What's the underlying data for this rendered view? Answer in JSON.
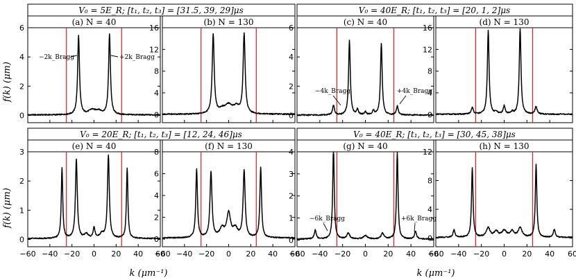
{
  "chart_data": {
    "type": "line",
    "x_axis": {
      "label": "k (μm⁻¹)",
      "range": [
        -60,
        60
      ],
      "ticks": [
        "−60",
        "−40",
        "−20",
        "0",
        "20",
        "40",
        "60"
      ]
    },
    "y_axis_label": "f(k) (μm)",
    "bragg_markers_x": [
      -25,
      25
    ],
    "colors": {
      "trace": "#000000",
      "marker": "#e41a1c",
      "frame": "#000000"
    },
    "groups": [
      {
        "title": "V₀ = 5E_R; [t₁, t₂, t₃] = [31.5, 39, 29]μs",
        "panels": [
          {
            "title": "(a) N = 40",
            "ylim": [
              -0.5,
              6
            ],
            "yticks": [
              "0",
              "2",
              "4",
              "6"
            ],
            "baseline": 0.03,
            "peaks": [
              {
                "x": -14,
                "height": 5.4,
                "width": 1.0
              },
              {
                "x": 14,
                "height": 5.5,
                "width": 1.0
              },
              {
                "x": -2,
                "height": 0.3,
                "width": 3.5
              },
              {
                "x": 4,
                "height": 0.25,
                "width": 3.5
              }
            ],
            "annotations": [
              "−2k_Bragg",
              "+2k_Bragg"
            ]
          },
          {
            "title": "(b) N = 130",
            "ylim": [
              -1.5,
              16
            ],
            "yticks": [
              "0",
              "4",
              "8",
              "12",
              "16"
            ],
            "baseline": 0.05,
            "peaks": [
              {
                "x": -14,
                "height": 14.5,
                "width": 1.1
              },
              {
                "x": 14,
                "height": 14.7,
                "width": 1.1
              },
              {
                "x": 0,
                "height": 1.6,
                "width": 4.0
              },
              {
                "x": 7,
                "height": 1.2,
                "width": 3.0
              },
              {
                "x": -6,
                "height": 0.7,
                "width": 3.0
              }
            ],
            "annotations": []
          }
        ]
      },
      {
        "title": "V₀ = 40E_R; [t₁, t₂, t₃] = [20, 1, 2]μs",
        "panels": [
          {
            "title": "(c) N = 40",
            "ylim": [
              -0.5,
              6
            ],
            "yticks": [
              "0",
              "2",
              "4",
              "6"
            ],
            "baseline": 0.02,
            "peaks": [
              {
                "x": -14,
                "height": 5.1,
                "width": 0.9
              },
              {
                "x": 14,
                "height": 4.9,
                "width": 0.9
              },
              {
                "x": -28,
                "height": 0.65,
                "width": 1.0
              },
              {
                "x": 28,
                "height": 0.6,
                "width": 1.0
              },
              {
                "x": -7,
                "height": 0.35,
                "width": 1.0
              },
              {
                "x": 7,
                "height": 0.3,
                "width": 1.0
              },
              {
                "x": 0,
                "height": 0.2,
                "width": 1.0
              }
            ],
            "annotations": [
              "−4k_Bragg",
              "+4k_Bragg"
            ]
          },
          {
            "title": "(d) N = 130",
            "ylim": [
              -1.5,
              16
            ],
            "yticks": [
              "0",
              "4",
              "8",
              "12",
              "16"
            ],
            "baseline": 0.05,
            "peaks": [
              {
                "x": -14,
                "height": 15.4,
                "width": 0.9
              },
              {
                "x": 14,
                "height": 15.8,
                "width": 0.9
              },
              {
                "x": -28,
                "height": 1.2,
                "width": 1.1
              },
              {
                "x": 28,
                "height": 1.4,
                "width": 1.1
              },
              {
                "x": 0,
                "height": 1.5,
                "width": 1.0
              },
              {
                "x": -7,
                "height": 0.4,
                "width": 1.2
              },
              {
                "x": 7,
                "height": 0.4,
                "width": 1.2
              }
            ],
            "annotations": []
          }
        ]
      },
      {
        "title": "V₀ = 20E_R; [t₁, t₂, t₃] = [12, 24, 46]μs",
        "panels": [
          {
            "title": "(e) N = 40",
            "ylim": [
              -0.25,
              3
            ],
            "yticks": [
              "0",
              "1",
              "2",
              "3"
            ],
            "baseline": 0.03,
            "peaks": [
              {
                "x": -29,
                "height": 2.4,
                "width": 0.8
              },
              {
                "x": -16,
                "height": 2.7,
                "width": 1.0
              },
              {
                "x": 13,
                "height": 2.85,
                "width": 1.0
              },
              {
                "x": 30,
                "height": 2.4,
                "width": 0.8
              },
              {
                "x": 0,
                "height": 0.35,
                "width": 1.0
              },
              {
                "x": -7,
                "height": 0.15,
                "width": 2.0
              },
              {
                "x": 7,
                "height": 0.15,
                "width": 2.0
              }
            ],
            "annotations": []
          },
          {
            "title": "(f) N = 130",
            "ylim": [
              -0.7,
              8
            ],
            "yticks": [
              "0",
              "2",
              "4",
              "6",
              "8"
            ],
            "baseline": 0.1,
            "peaks": [
              {
                "x": -29,
                "height": 6.3,
                "width": 0.9
              },
              {
                "x": -16,
                "height": 6.0,
                "width": 1.1
              },
              {
                "x": 14,
                "height": 6.1,
                "width": 1.1
              },
              {
                "x": 29,
                "height": 6.4,
                "width": 0.9
              },
              {
                "x": 0,
                "height": 2.2,
                "width": 2.0
              },
              {
                "x": -6,
                "height": 0.8,
                "width": 2.5
              },
              {
                "x": 6,
                "height": 0.8,
                "width": 2.5
              }
            ],
            "annotations": []
          }
        ]
      },
      {
        "title": "V₀ = 40E_R; [t₁, t₂, t₃] = [30, 45, 38]μs",
        "panels": [
          {
            "title": "(g) N = 40",
            "ylim": [
              -0.3,
              4
            ],
            "yticks": [
              "0",
              "1",
              "2",
              "3",
              "4"
            ],
            "baseline": 0.05,
            "peaks": [
              {
                "x": -28,
                "height": 4.2,
                "width": 0.8
              },
              {
                "x": 28,
                "height": 3.9,
                "width": 0.8
              },
              {
                "x": -44,
                "height": 0.4,
                "width": 1.0
              },
              {
                "x": 44,
                "height": 0.35,
                "width": 1.0
              },
              {
                "x": -15,
                "height": 0.25,
                "width": 1.5
              },
              {
                "x": 15,
                "height": 0.25,
                "width": 1.5
              },
              {
                "x": 0,
                "height": 0.15,
                "width": 2.0
              }
            ],
            "annotations": [
              "−6k_Bragg",
              "+6k_Bragg"
            ]
          },
          {
            "title": "(h) N = 130",
            "ylim": [
              -1.2,
              12
            ],
            "yticks": [
              "0",
              "4",
              "8",
              "12"
            ],
            "baseline": 0.1,
            "peaks": [
              {
                "x": -28,
                "height": 9.6,
                "width": 0.8
              },
              {
                "x": 28,
                "height": 10.1,
                "width": 0.8
              },
              {
                "x": -44,
                "height": 1.0,
                "width": 1.0
              },
              {
                "x": 44,
                "height": 1.1,
                "width": 1.0
              },
              {
                "x": -14,
                "height": 1.3,
                "width": 2.0
              },
              {
                "x": 14,
                "height": 1.3,
                "width": 2.0
              },
              {
                "x": 0,
                "height": 0.9,
                "width": 2.5
              },
              {
                "x": -7,
                "height": 0.8,
                "width": 2.0
              },
              {
                "x": 7,
                "height": 0.8,
                "width": 2.0
              }
            ],
            "annotations": []
          }
        ]
      }
    ]
  }
}
